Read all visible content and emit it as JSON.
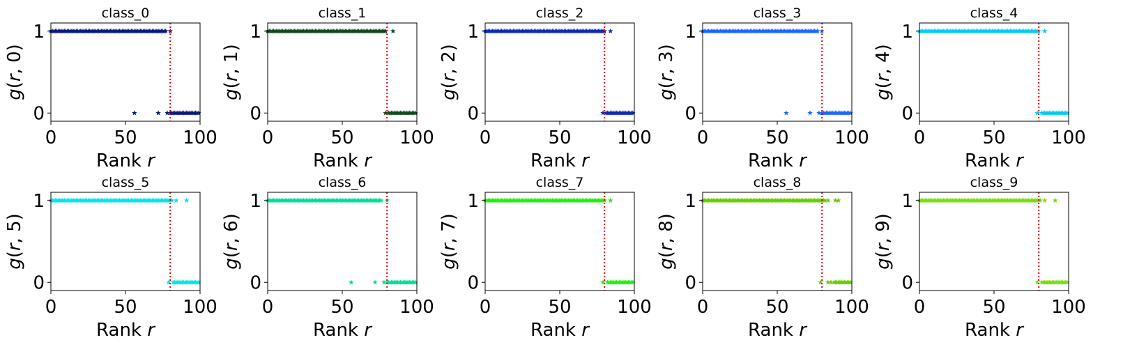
{
  "chart_data": {
    "type": "scatter",
    "layout": "2x5 grid",
    "marker": "star",
    "xlim": [
      0,
      100
    ],
    "ylim": [
      -0.1,
      1.1
    ],
    "xticks": [
      0,
      50,
      100
    ],
    "yticks": [
      0,
      1
    ],
    "grid": false,
    "reference_line": {
      "orientation": "vertical",
      "x": 80,
      "color": "#dd0000",
      "style": "dotted"
    },
    "panels": [
      {
        "title": "class_0",
        "ylabel_class": "0",
        "color": "#0a1a7a",
        "ones_x_max": 77,
        "stray_ones": [
          80
        ],
        "stray_zeros": [
          56,
          72,
          78
        ],
        "zeros_x_start": 80
      },
      {
        "title": "class_1",
        "ylabel_class": "1",
        "color": "#0f4a20",
        "ones_x_max": 79,
        "stray_ones": [
          84
        ],
        "stray_zeros": [
          79
        ],
        "zeros_x_start": 81
      },
      {
        "title": "class_2",
        "ylabel_class": "2",
        "color": "#0d2ab4",
        "ones_x_max": 80,
        "stray_ones": [
          84
        ],
        "stray_zeros": [
          79
        ],
        "zeros_x_start": 81
      },
      {
        "title": "class_3",
        "ylabel_class": "3",
        "color": "#1a66ff",
        "ones_x_max": 77,
        "stray_ones": [
          80
        ],
        "stray_zeros": [
          56,
          72,
          78
        ],
        "zeros_x_start": 80
      },
      {
        "title": "class_4",
        "ylabel_class": "4",
        "color": "#00ccee",
        "ones_x_max": 80,
        "stray_ones": [
          84
        ],
        "stray_zeros": [
          79
        ],
        "zeros_x_start": 82
      },
      {
        "title": "class_5",
        "ylabel_class": "5",
        "color": "#00e5e5",
        "ones_x_max": 81,
        "stray_ones": [
          84,
          91
        ],
        "stray_zeros": [
          79
        ],
        "zeros_x_start": 82
      },
      {
        "title": "class_6",
        "ylabel_class": "6",
        "color": "#00dd99",
        "ones_x_max": 76,
        "stray_ones": [
          80
        ],
        "stray_zeros": [
          56,
          72,
          78
        ],
        "zeros_x_start": 80
      },
      {
        "title": "class_7",
        "ylabel_class": "7",
        "color": "#22ee11",
        "ones_x_max": 80,
        "stray_ones": [
          84
        ],
        "stray_zeros": [
          79
        ],
        "zeros_x_start": 82
      },
      {
        "title": "class_8",
        "ylabel_class": "8",
        "color": "#66cc00",
        "ones_x_max": 82,
        "stray_ones": [
          84,
          89,
          91
        ],
        "stray_zeros": [
          79,
          84,
          86
        ],
        "zeros_x_start": 88
      },
      {
        "title": "class_9",
        "ylabel_class": "9",
        "color": "#77dd11",
        "ones_x_max": 81,
        "stray_ones": [
          84,
          91
        ],
        "stray_zeros": [
          79
        ],
        "zeros_x_start": 82
      }
    ]
  },
  "axis_text": {
    "xlabel_prefix": "Rank ",
    "xlabel_var": "r",
    "ylabel_fn": "g",
    "ylabel_open": "(",
    "ylabel_var": "r",
    "ylabel_sep": ", ",
    "ylabel_close": ")"
  }
}
